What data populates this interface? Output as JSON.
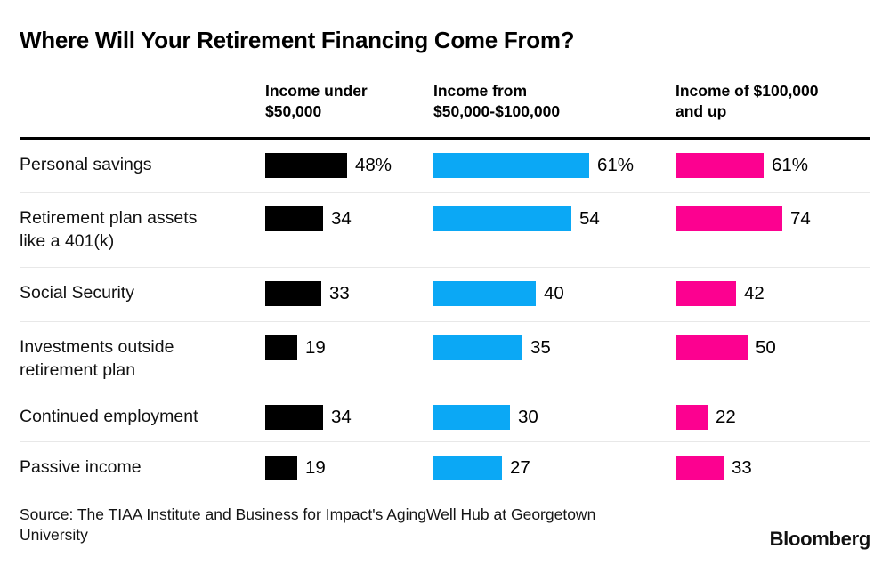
{
  "header": {
    "title": "Where Will Your Retirement Financing Come From?"
  },
  "chart_data": {
    "type": "bar",
    "orientation": "horizontal",
    "title": "Where Will Your Retirement Financing Come From?",
    "categories": [
      "Personal savings",
      "Retirement plan assets\nlike a 401(k)",
      "Social Security",
      "Investments outside\nretirement plan",
      "Continued employment",
      "Passive income"
    ],
    "series": [
      {
        "name": "Income under\n$50,000",
        "color": "#000000",
        "values": [
          48,
          34,
          33,
          19,
          34,
          19
        ],
        "value_labels": [
          "48%",
          "34",
          "33",
          "19",
          "34",
          "19"
        ]
      },
      {
        "name": "Income from\n$50,000-$100,000",
        "color": "#0BA8F5",
        "values": [
          61,
          54,
          40,
          35,
          30,
          27
        ],
        "value_labels": [
          "61%",
          "54",
          "40",
          "35",
          "30",
          "27"
        ]
      },
      {
        "name": "Income of $100,000\nand up",
        "color": "#FC0190",
        "values": [
          61,
          74,
          42,
          50,
          22,
          33
        ],
        "value_labels": [
          "61%",
          "74",
          "42",
          "50",
          "22",
          "33"
        ]
      }
    ],
    "unit": "percent",
    "xlim": [
      0,
      100
    ],
    "grid": false,
    "legend_position": "column-headers"
  },
  "footer": {
    "source": "Source: The TIAA Institute and Business for Impact's AgingWell Hub at Georgetown\nUniversity",
    "brand": "Bloomberg"
  }
}
